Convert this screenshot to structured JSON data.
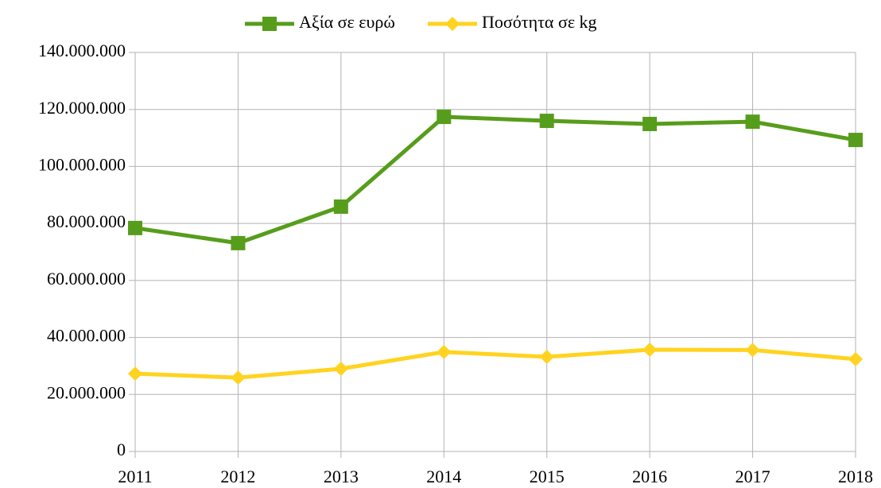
{
  "chart_data": {
    "type": "line",
    "categories": [
      "2011",
      "2012",
      "2013",
      "2014",
      "2015",
      "2016",
      "2017",
      "2018"
    ],
    "series": [
      {
        "name": "Αξία σε ευρώ",
        "color": "#579d1c",
        "marker": "square",
        "values": [
          78400000,
          73100000,
          85900000,
          117400000,
          116000000,
          114900000,
          115700000,
          109300000
        ]
      },
      {
        "name": "Ποσότητα σε kg",
        "color": "#ffd320",
        "marker": "diamond",
        "values": [
          27300000,
          25900000,
          29000000,
          34900000,
          33200000,
          35700000,
          35600000,
          32400000
        ]
      }
    ],
    "ylim": [
      0,
      140000000
    ],
    "yticks": [
      0,
      {
        "value": 20000000,
        "label": "20.000.000"
      },
      {
        "value": 40000000,
        "label": "40.000.000"
      },
      {
        "value": 60000000,
        "label": "60.000.000"
      },
      {
        "value": 80000000,
        "label": "80.000.000"
      },
      {
        "value": 100000000,
        "label": "100.000.000"
      },
      {
        "value": 120000000,
        "label": "120.000.000"
      },
      {
        "value": 140000000,
        "label": "140.000.000"
      }
    ],
    "grid": true,
    "legend": "top"
  }
}
